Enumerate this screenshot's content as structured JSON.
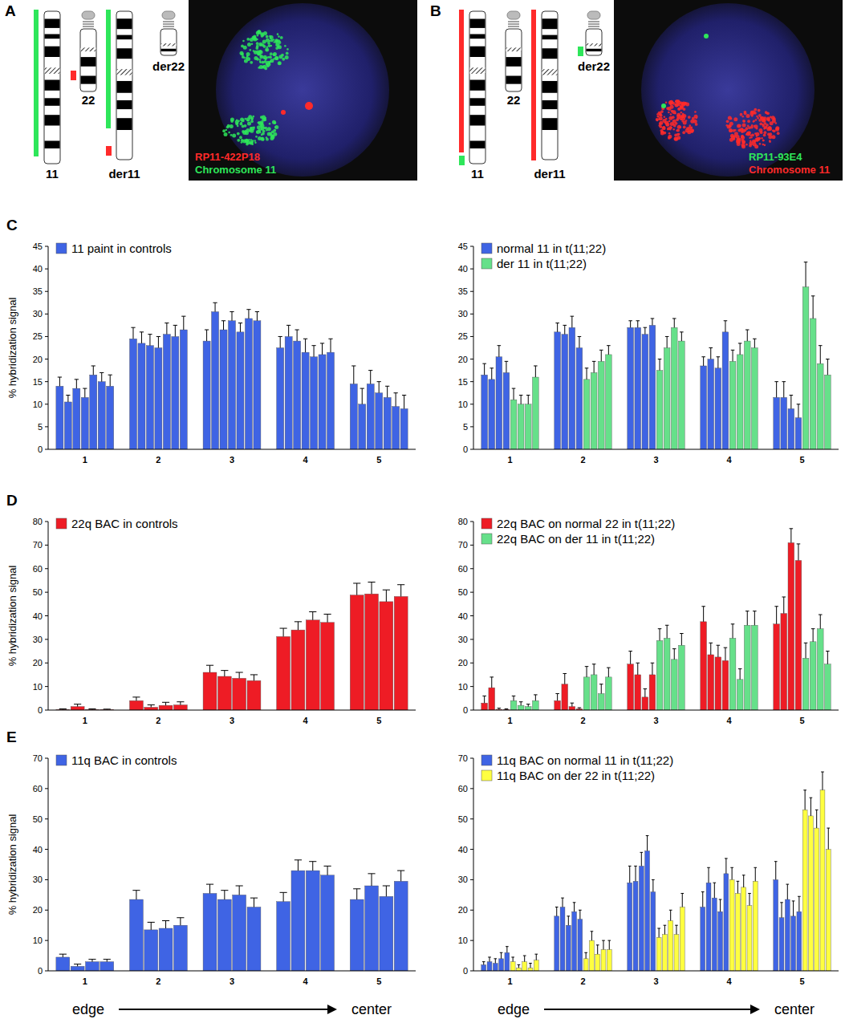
{
  "panels": [
    {
      "letter": "A",
      "chromosomes": [
        "11",
        "22",
        "der11",
        "der22"
      ],
      "probes": [
        {
          "text": "RP11-422P18",
          "color": "#ff2a2a"
        },
        {
          "text": "Chromosome 11",
          "color": "#2ee65a"
        }
      ]
    },
    {
      "letter": "B",
      "chromosomes": [
        "11",
        "22",
        "der11",
        "der22"
      ],
      "probes": [
        {
          "text": "RP11-93E4",
          "color": "#2ee65a"
        },
        {
          "text": "Chromosome 11",
          "color": "#ff2a2a"
        }
      ]
    }
  ],
  "row_letters": [
    "C",
    "D",
    "E"
  ],
  "x_direction": {
    "start": "edge",
    "end": "center"
  },
  "chart_data": [
    {
      "type": "bar",
      "ylabel": "% hybridization signal",
      "categories": [
        "1",
        "2",
        "3",
        "4",
        "5"
      ],
      "ylim": [
        0,
        45
      ],
      "yticks": [
        0,
        5,
        10,
        15,
        20,
        25,
        30,
        35,
        40,
        45
      ],
      "legend": "upper left",
      "series": [
        {
          "name": "11 paint in controls",
          "color": "#3f64e4",
          "values": [
            [
              14,
              10.5,
              13.5,
              11.5,
              16.5,
              15,
              14
            ],
            [
              24.5,
              23.5,
              23,
              22.5,
              25.5,
              25,
              26.5
            ],
            [
              24,
              30.5,
              26.5,
              28.5,
              26,
              29,
              28.5
            ],
            [
              22.5,
              25,
              24,
              21.5,
              20.5,
              21,
              21.5
            ],
            [
              14.5,
              10,
              14.5,
              12.5,
              11.5,
              9.5,
              9
            ]
          ],
          "errors": [
            [
              2,
              1.5,
              2,
              2,
              2,
              2,
              2.5
            ],
            [
              2.5,
              2.5,
              2.5,
              2.5,
              2.5,
              2.5,
              3
            ],
            [
              2.5,
              2,
              2,
              2,
              2,
              2,
              2
            ],
            [
              2.5,
              2.5,
              2.5,
              3,
              2.5,
              2.5,
              3
            ],
            [
              4,
              3.5,
              3,
              2.5,
              2.5,
              3,
              3
            ]
          ]
        }
      ]
    },
    {
      "type": "bar",
      "categories": [
        "1",
        "2",
        "3",
        "4",
        "5"
      ],
      "ylim": [
        0,
        45
      ],
      "yticks": [
        0,
        5,
        10,
        15,
        20,
        25,
        30,
        35,
        40,
        45
      ],
      "legend": "upper left",
      "series": [
        {
          "name": "normal 11 in t(11;22)",
          "color": "#3f64e4",
          "values": [
            [
              16.5,
              15.5,
              20.5,
              17
            ],
            [
              26,
              25.5,
              27,
              22.5
            ],
            [
              27,
              27,
              25.5,
              27.5
            ],
            [
              18.5,
              20,
              18,
              26
            ],
            [
              11.5,
              11.5,
              9,
              7
            ]
          ],
          "errors": [
            [
              2.5,
              2.5,
              2.5,
              2.5
            ],
            [
              2,
              2,
              2.5,
              2.5
            ],
            [
              1.5,
              1.5,
              1.5,
              1.5
            ],
            [
              2,
              2.5,
              2.5,
              2.5
            ],
            [
              3.5,
              3.5,
              3,
              3
            ]
          ]
        },
        {
          "name": "der 11 in t(11;22)",
          "color": "#66e08a",
          "values": [
            [
              11,
              10,
              10,
              16
            ],
            [
              15.5,
              17,
              19.5,
              21
            ],
            [
              17.5,
              22.5,
              27,
              24
            ],
            [
              19.5,
              21,
              24,
              22.5
            ],
            [
              36,
              29,
              19,
              16.5
            ]
          ],
          "errors": [
            [
              2.5,
              2,
              2,
              2.5
            ],
            [
              2.5,
              2.5,
              2.5,
              2
            ],
            [
              2.5,
              2.5,
              2,
              2
            ],
            [
              2.5,
              2.5,
              2.5,
              2
            ],
            [
              5.5,
              5,
              4,
              3.5
            ]
          ]
        }
      ]
    },
    {
      "type": "bar",
      "ylabel": "% hybridization signal",
      "categories": [
        "1",
        "2",
        "3",
        "4",
        "5"
      ],
      "ylim": [
        0,
        80
      ],
      "yticks": [
        0,
        10,
        20,
        30,
        40,
        50,
        60,
        70,
        80
      ],
      "legend": "upper left",
      "series": [
        {
          "name": "22q BAC in controls",
          "color": "#ee1c25",
          "values": [
            [
              0.2,
              1.5,
              0.2,
              0.2
            ],
            [
              4,
              1.2,
              2,
              2.2
            ],
            [
              16,
              14.3,
              13.5,
              12.5
            ],
            [
              31.2,
              34,
              38.2,
              37.2
            ],
            [
              48.8,
              49.3,
              46,
              48.2
            ]
          ],
          "errors": [
            [
              0.3,
              1,
              0.3,
              0.2
            ],
            [
              1.5,
              1,
              1.3,
              1.3
            ],
            [
              3,
              2.5,
              2.5,
              2.5
            ],
            [
              3.5,
              3.5,
              3.5,
              3.5
            ],
            [
              5,
              5,
              5,
              5
            ]
          ]
        }
      ]
    },
    {
      "type": "bar",
      "categories": [
        "1",
        "2",
        "3",
        "4",
        "5"
      ],
      "ylim": [
        0,
        80
      ],
      "yticks": [
        0,
        10,
        20,
        30,
        40,
        50,
        60,
        70,
        80
      ],
      "legend": "upper left",
      "series": [
        {
          "name": "22q BAC on normal 22 in t(11;22)",
          "color": "#ee1c25",
          "values": [
            [
              3,
              9.5,
              0.3,
              0.2
            ],
            [
              4,
              11,
              1.5,
              0.5
            ],
            [
              19.5,
              15,
              5.5,
              15
            ],
            [
              37.5,
              23.5,
              22.5,
              21
            ],
            [
              36.5,
              41,
              71,
              63.5
            ]
          ],
          "errors": [
            [
              3,
              4.5,
              0.5,
              0.3
            ],
            [
              3,
              4.5,
              1.5,
              0.5
            ],
            [
              5.5,
              5,
              3.5,
              5
            ],
            [
              6.5,
              5,
              5,
              5.5
            ],
            [
              7.5,
              7,
              6,
              7
            ]
          ]
        },
        {
          "name": "22q BAC on der 11 in t(11;22)",
          "color": "#66e08a",
          "values": [
            [
              4,
              2,
              1.5,
              4
            ],
            [
              14,
              15,
              7,
              14
            ],
            [
              29.5,
              30.5,
              21.5,
              27.5
            ],
            [
              30.5,
              13,
              36,
              36
            ],
            [
              22,
              29,
              34.5,
              19.5
            ]
          ],
          "errors": [
            [
              2,
              1.5,
              1,
              2.5
            ],
            [
              4.5,
              4.5,
              4,
              4
            ],
            [
              5,
              5.5,
              4.5,
              5
            ],
            [
              6,
              4.5,
              6,
              6
            ],
            [
              6.5,
              5.5,
              6,
              5.5
            ]
          ]
        }
      ]
    },
    {
      "type": "bar",
      "ylabel": "% hybridization signal",
      "categories": [
        "1",
        "2",
        "3",
        "4",
        "5"
      ],
      "ylim": [
        0,
        70
      ],
      "yticks": [
        0,
        10,
        20,
        30,
        40,
        50,
        60,
        70
      ],
      "legend": "upper left",
      "series": [
        {
          "name": "11q BAC in controls",
          "color": "#3f64e4",
          "values": [
            [
              4.5,
              1.5,
              3,
              3
            ],
            [
              23.5,
              13.5,
              14,
              15
            ],
            [
              25.5,
              23.5,
              25,
              21
            ],
            [
              22.8,
              33,
              33,
              31.5
            ],
            [
              23.5,
              28,
              24.5,
              29.5
            ]
          ],
          "errors": [
            [
              1,
              0.7,
              0.8,
              0.8
            ],
            [
              3,
              2.5,
              2.5,
              2.5
            ],
            [
              3,
              3,
              3,
              3
            ],
            [
              3,
              3.5,
              3,
              3
            ],
            [
              3.5,
              4,
              3.5,
              3.5
            ]
          ]
        }
      ]
    },
    {
      "type": "bar",
      "categories": [
        "1",
        "2",
        "3",
        "4",
        "5"
      ],
      "ylim": [
        0,
        70
      ],
      "yticks": [
        0,
        10,
        20,
        30,
        40,
        50,
        60,
        70
      ],
      "legend": "upper left",
      "series": [
        {
          "name": "11q BAC on normal 11 in t(11;22)",
          "color": "#3f64e4",
          "values": [
            [
              2,
              3,
              2.5,
              4,
              6
            ],
            [
              18,
              21,
              15,
              19.5,
              17
            ],
            [
              29,
              29.5,
              34.5,
              39.5,
              26
            ],
            [
              21,
              29,
              24,
              19.5,
              32
            ],
            [
              30,
              17.5,
              23.5,
              18,
              19.5
            ]
          ],
          "errors": [
            [
              1,
              1.5,
              1.5,
              2,
              2
            ],
            [
              3,
              3,
              3,
              3,
              3
            ],
            [
              5.5,
              5,
              4.5,
              5,
              4
            ],
            [
              5,
              5,
              5,
              4,
              5
            ],
            [
              6,
              5,
              5,
              5,
              5
            ]
          ]
        },
        {
          "name": "11q BAC on der 22 in t(11;22)",
          "color": "#ffff40",
          "values": [
            [
              3,
              1,
              3,
              1,
              3.5
            ],
            [
              4,
              10,
              5.5,
              7,
              7
            ],
            [
              11,
              12,
              16.5,
              12,
              21
            ],
            [
              30,
              25.5,
              27.5,
              21.5,
              29.5
            ],
            [
              53,
              51,
              47,
              59.5,
              40
            ]
          ],
          "errors": [
            [
              1.5,
              1,
              2,
              1.5,
              2
            ],
            [
              2,
              3,
              3,
              3,
              3
            ],
            [
              3,
              3,
              3.5,
              3,
              4.5
            ],
            [
              4,
              4,
              4,
              4,
              4.5
            ],
            [
              6.5,
              6,
              6,
              6,
              7
            ]
          ]
        }
      ]
    }
  ]
}
